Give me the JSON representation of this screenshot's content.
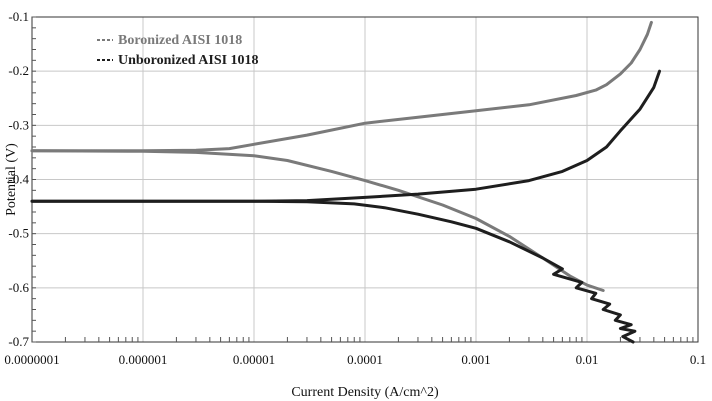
{
  "chart_data": {
    "type": "line",
    "title": "",
    "xlabel": "Current Density (A/cm^2)",
    "ylabel": "Potential (V)",
    "x_scale": "log",
    "xlim": [
      1e-07,
      0.1
    ],
    "ylim": [
      -0.7,
      -0.1
    ],
    "x_ticks": [
      1e-07,
      1e-06,
      1e-05,
      0.0001,
      0.001,
      0.01,
      0.1
    ],
    "x_tick_labels": [
      "0.0000001",
      "0.000001",
      "0.00001",
      "0.0001",
      "0.001",
      "0.01",
      "0.1"
    ],
    "y_ticks": [
      -0.1,
      -0.2,
      -0.3,
      -0.4,
      -0.5,
      -0.6,
      -0.7
    ],
    "y_tick_labels": [
      "-0.1",
      "-0.2",
      "-0.3",
      "-0.4",
      "-0.5",
      "-0.6",
      "-0.7"
    ],
    "grid": true,
    "legend_position": "top-left",
    "series": [
      {
        "name": "Boronized AISI 1018",
        "color": "#7a7a7a",
        "branches": [
          {
            "x": [
              1e-07,
              1e-06,
              3e-06,
              6e-06,
              1e-05,
              3e-05,
              0.0001,
              0.0003,
              0.001,
              0.003,
              0.008,
              0.012,
              0.015,
              0.02,
              0.025,
              0.03,
              0.035,
              0.038
            ],
            "y": [
              -0.347,
              -0.347,
              -0.346,
              -0.343,
              -0.335,
              -0.318,
              -0.296,
              -0.285,
              -0.273,
              -0.262,
              -0.245,
              -0.235,
              -0.225,
              -0.205,
              -0.185,
              -0.16,
              -0.132,
              -0.11
            ]
          },
          {
            "x": [
              1e-07,
              1e-06,
              3e-06,
              1e-05,
              2e-05,
              5e-05,
              0.0001,
              0.0002,
              0.0005,
              0.001,
              0.002,
              0.004,
              0.007,
              0.01,
              0.014
            ],
            "y": [
              -0.347,
              -0.348,
              -0.35,
              -0.356,
              -0.365,
              -0.385,
              -0.402,
              -0.42,
              -0.447,
              -0.472,
              -0.505,
              -0.545,
              -0.578,
              -0.595,
              -0.605
            ]
          }
        ]
      },
      {
        "name": "Unboronized AISI 1018",
        "color": "#1e1e1e",
        "branches": [
          {
            "x": [
              1e-07,
              1e-06,
              1e-05,
              3e-05,
              0.0001,
              0.0003,
              0.001,
              0.003,
              0.006,
              0.01,
              0.015,
              0.02,
              0.03,
              0.04,
              0.045
            ],
            "y": [
              -0.44,
              -0.44,
              -0.44,
              -0.439,
              -0.433,
              -0.427,
              -0.418,
              -0.402,
              -0.385,
              -0.365,
              -0.34,
              -0.31,
              -0.27,
              -0.23,
              -0.2
            ]
          },
          {
            "x": [
              1e-07,
              1e-06,
              1e-05,
              3e-05,
              8e-05,
              0.00015,
              0.0003,
              0.0006,
              0.001,
              0.002,
              0.004,
              0.006,
              0.005,
              0.009,
              0.008,
              0.012,
              0.011,
              0.016,
              0.014,
              0.02,
              0.018,
              0.025,
              0.02,
              0.027,
              0.021,
              0.026
            ],
            "y": [
              -0.44,
              -0.44,
              -0.44,
              -0.441,
              -0.445,
              -0.452,
              -0.464,
              -0.478,
              -0.49,
              -0.515,
              -0.545,
              -0.565,
              -0.575,
              -0.59,
              -0.6,
              -0.61,
              -0.62,
              -0.63,
              -0.64,
              -0.65,
              -0.66,
              -0.668,
              -0.675,
              -0.68,
              -0.69,
              -0.7
            ]
          }
        ]
      }
    ]
  }
}
